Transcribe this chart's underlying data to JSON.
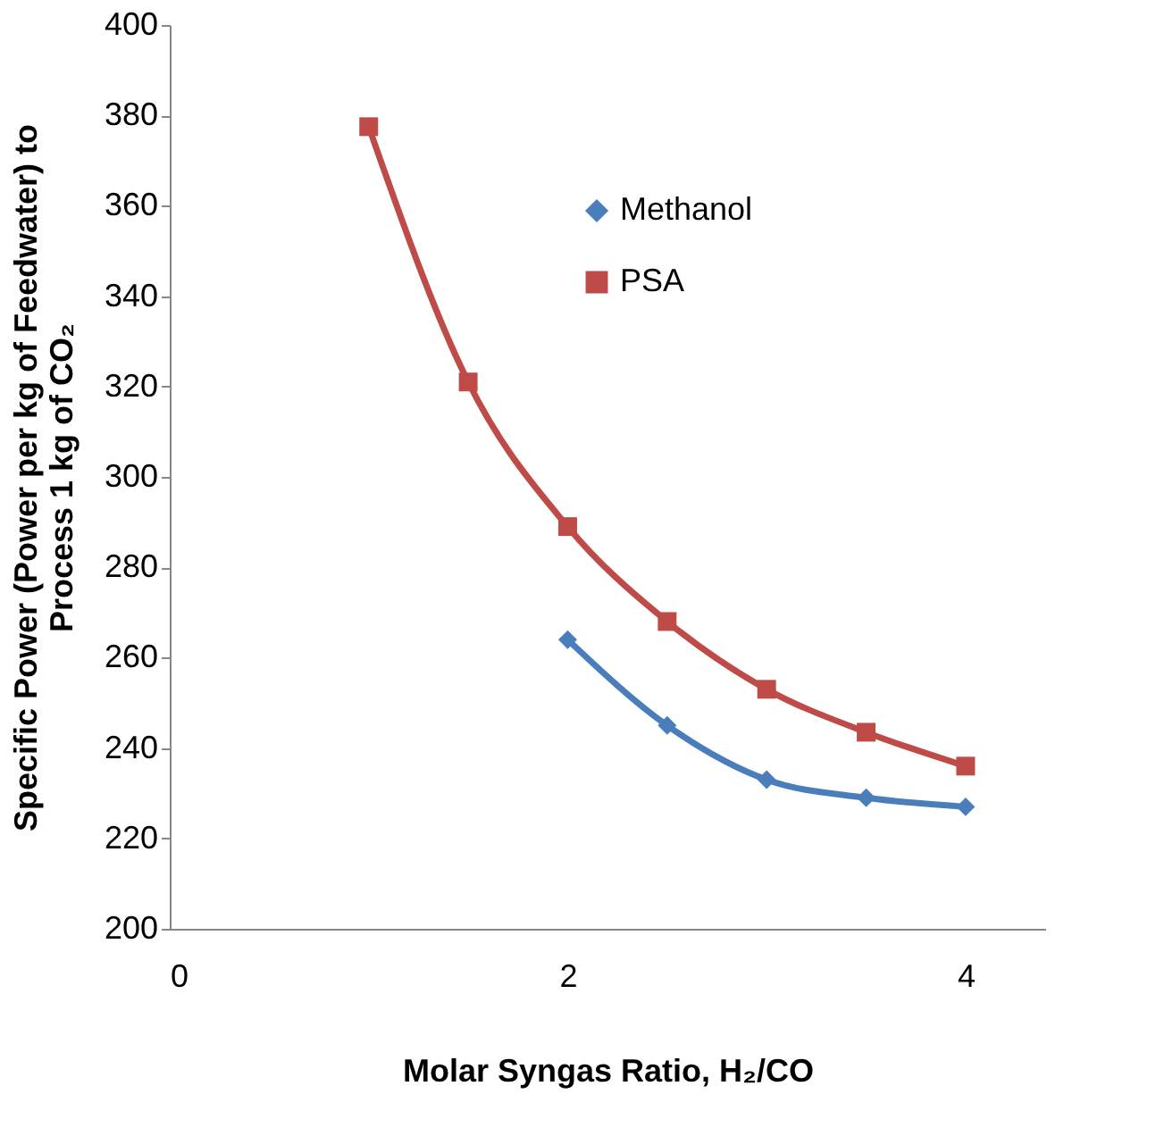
{
  "chart_data": {
    "type": "line",
    "xlabel": "Molar Syngas Ratio, H₂/CO",
    "ylabel": "Specific Power (Power per kg of Feedwater) to\nProcess 1 kg of CO₂",
    "xlim": [
      0,
      4.4
    ],
    "xticks": [
      0,
      2,
      4
    ],
    "ylim": [
      200,
      400
    ],
    "yticks": [
      200,
      220,
      240,
      260,
      280,
      300,
      320,
      340,
      360,
      380,
      400
    ],
    "grid": false,
    "legend": "top right",
    "series": [
      {
        "name": "Methanol",
        "color": "#4a7ebb",
        "marker": "diamond",
        "x": [
          2,
          2.5,
          3,
          3.5,
          4
        ],
        "values": [
          264,
          245,
          233,
          229,
          227
        ]
      },
      {
        "name": "PSA",
        "color": "#be4b48",
        "marker": "square",
        "x": [
          1,
          1.5,
          2,
          2.5,
          3,
          3.5,
          4
        ],
        "values": [
          377.5,
          321,
          289,
          268,
          253,
          243.5,
          236
        ]
      }
    ]
  }
}
